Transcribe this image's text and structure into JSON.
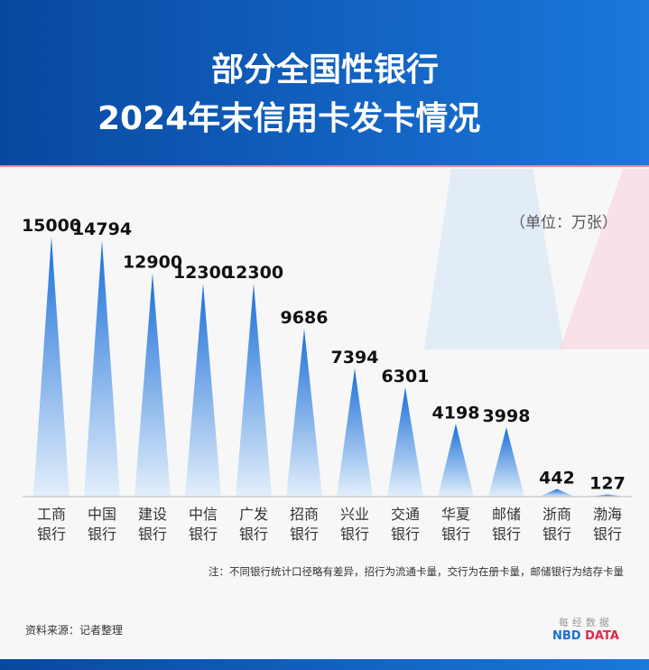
{
  "header": {
    "title_line1": "部分全国性银行",
    "title_line2": "2024年末信用卡发卡情况"
  },
  "chart_data": {
    "type": "bar",
    "title": "部分全国性银行2024年末信用卡发卡情况",
    "unit": "（单位：万张）",
    "categories": [
      [
        "工商",
        "银行"
      ],
      [
        "中国",
        "银行"
      ],
      [
        "建设",
        "银行"
      ],
      [
        "中信",
        "银行"
      ],
      [
        "广发",
        "银行"
      ],
      [
        "招商",
        "银行"
      ],
      [
        "兴业",
        "银行"
      ],
      [
        "交通",
        "银行"
      ],
      [
        "华夏",
        "银行"
      ],
      [
        "邮储",
        "银行"
      ],
      [
        "浙商",
        "银行"
      ],
      [
        "渤海",
        "银行"
      ]
    ],
    "values": [
      15000,
      14794,
      12900,
      12300,
      12300,
      9686,
      7394,
      6301,
      4198,
      3998,
      442,
      127
    ],
    "ylim": [
      0,
      15000
    ],
    "grid": false,
    "colors": {
      "bar_top": "#1a6fd8",
      "bar_bottom": "#e3effb"
    }
  },
  "note": "注：不同银行统计口径略有差异，招行为流通卡量，交行为在册卡量，邮储银行为结存卡量",
  "source": "资料来源：记者整理",
  "logo": {
    "cn": "每经数据",
    "nbd": "NBD",
    "data": "DATA",
    "nbd_color": "#1a6fd8",
    "data_color": "#e0284a"
  }
}
